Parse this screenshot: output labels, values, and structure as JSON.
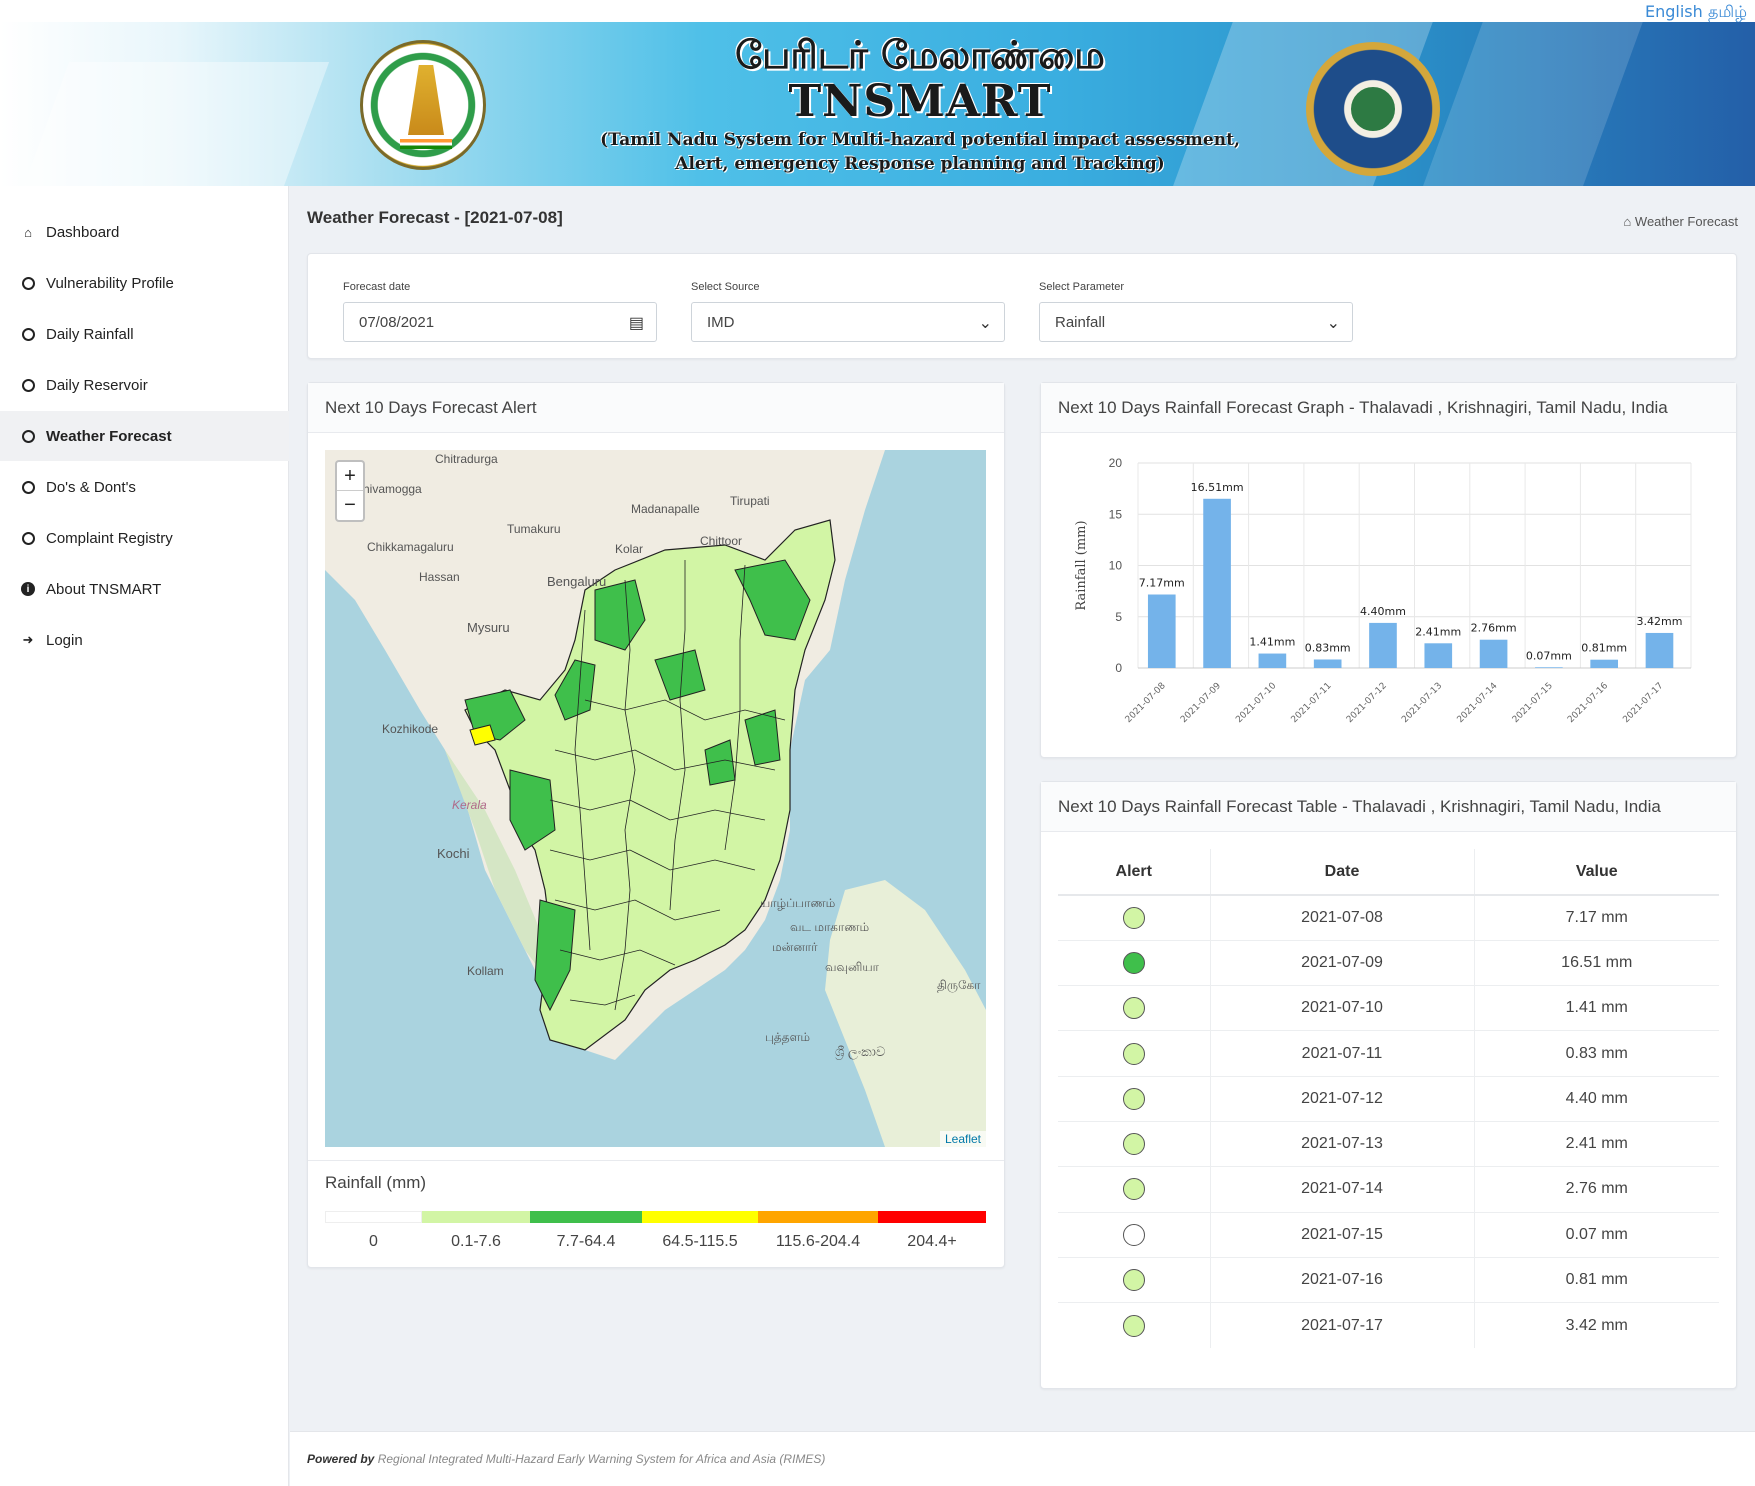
{
  "lang": {
    "english": "English",
    "tamil": "தமிழ்"
  },
  "banner": {
    "title_tamil": "பேரிடர் மேலாண்மை",
    "title": "TNSMART",
    "subtitle_line1": "(Tamil Nadu System for Multi-hazard potential impact assessment,",
    "subtitle_line2": "Alert, emergency Response planning and Tracking)"
  },
  "sidebar": {
    "items": [
      {
        "label": "Dashboard",
        "icon": "home-icon"
      },
      {
        "label": "Vulnerability Profile",
        "icon": "circle-icon"
      },
      {
        "label": "Daily Rainfall",
        "icon": "circle-icon"
      },
      {
        "label": "Daily Reservoir",
        "icon": "circle-icon"
      },
      {
        "label": "Weather Forecast",
        "icon": "circle-icon",
        "active": true
      },
      {
        "label": "Do's & Dont's",
        "icon": "circle-icon"
      },
      {
        "label": "Complaint Registry",
        "icon": "circle-icon"
      },
      {
        "label": "About TNSMART",
        "icon": "info-icon"
      },
      {
        "label": "Login",
        "icon": "sign-in-icon"
      }
    ]
  },
  "page": {
    "title": "Weather Forecast - [2021-07-08]",
    "breadcrumb": "Weather Forecast"
  },
  "filters": {
    "date_label": "Forecast date",
    "date_value": "07/08/2021",
    "source_label": "Select Source",
    "source_value": "IMD",
    "param_label": "Select Parameter",
    "param_value": "Rainfall"
  },
  "map_card": {
    "title": "Next 10 Days Forecast Alert",
    "zoom_in": "+",
    "zoom_out": "−",
    "attribution": "Leaflet",
    "place_labels": [
      "Chitradurga",
      "Shivamogga",
      "Tirupati",
      "Madanapalle",
      "Tumakuru",
      "Chikkamagaluru",
      "Kolar",
      "Chittoor",
      "Hassan",
      "Bengaluru",
      "Mysuru",
      "Kozhikode",
      "Kerala",
      "Kochi",
      "Kollam",
      "யாழ்ப்பாணம்",
      "வட மாகாணம்",
      "மன்னார்",
      "வவுனியா",
      "திருகோ",
      "புத்தளம்",
      "ශ්‍රී ලංකාව"
    ]
  },
  "legend": {
    "title": "Rainfall (mm)",
    "bins": [
      {
        "label": "0",
        "color": "#ffffff"
      },
      {
        "label": "0.1-7.6",
        "color": "#d2f5a5"
      },
      {
        "label": "7.7-64.4",
        "color": "#3fbf4b"
      },
      {
        "label": "64.5-115.5",
        "color": "#ffff00"
      },
      {
        "label": "115.6-204.4",
        "color": "#ffa500"
      },
      {
        "label": "204.4+",
        "color": "#ff0000"
      }
    ]
  },
  "chart_card": {
    "title": "Next 10 Days Rainfall Forecast Graph - Thalavadi , Krishnagiri, Tamil Nadu, India"
  },
  "chart_data": {
    "type": "bar",
    "categories": [
      "2021-07-08",
      "2021-07-09",
      "2021-07-10",
      "2021-07-11",
      "2021-07-12",
      "2021-07-13",
      "2021-07-14",
      "2021-07-15",
      "2021-07-16",
      "2021-07-17"
    ],
    "values": [
      7.17,
      16.51,
      1.41,
      0.83,
      4.4,
      2.41,
      2.76,
      0.07,
      0.81,
      3.42
    ],
    "data_labels": [
      "7.17mm",
      "16.51mm",
      "1.41mm",
      "0.83mm",
      "4.40mm",
      "2.41mm",
      "2.76mm",
      "0.07mm",
      "0.81mm",
      "3.42mm"
    ],
    "ylabel": "Rainfall (mm)",
    "xlabel": "",
    "ylim": [
      0,
      20
    ],
    "yticks": [
      0,
      5,
      10,
      15,
      20
    ],
    "bar_color": "#74b3ea",
    "grid": true
  },
  "table_card": {
    "title": "Next 10 Days Rainfall Forecast Table - Thalavadi , Krishnagiri, Tamil Nadu, India",
    "headers": [
      "Alert",
      "Date",
      "Value"
    ],
    "rows": [
      {
        "alert_color": "#d2f5a5",
        "date": "2021-07-08",
        "value": "7.17 mm"
      },
      {
        "alert_color": "#3fbf4b",
        "date": "2021-07-09",
        "value": "16.51 mm"
      },
      {
        "alert_color": "#d2f5a5",
        "date": "2021-07-10",
        "value": "1.41 mm"
      },
      {
        "alert_color": "#d2f5a5",
        "date": "2021-07-11",
        "value": "0.83 mm"
      },
      {
        "alert_color": "#d2f5a5",
        "date": "2021-07-12",
        "value": "4.40 mm"
      },
      {
        "alert_color": "#d2f5a5",
        "date": "2021-07-13",
        "value": "2.41 mm"
      },
      {
        "alert_color": "#d2f5a5",
        "date": "2021-07-14",
        "value": "2.76 mm"
      },
      {
        "alert_color": "#ffffff",
        "date": "2021-07-15",
        "value": "0.07 mm"
      },
      {
        "alert_color": "#d2f5a5",
        "date": "2021-07-16",
        "value": "0.81 mm"
      },
      {
        "alert_color": "#d2f5a5",
        "date": "2021-07-17",
        "value": "3.42 mm"
      }
    ]
  },
  "footer": {
    "powered_by": "Powered by",
    "org": "Regional Integrated Multi-Hazard Early Warning System for Africa and Asia (RIMES)"
  }
}
